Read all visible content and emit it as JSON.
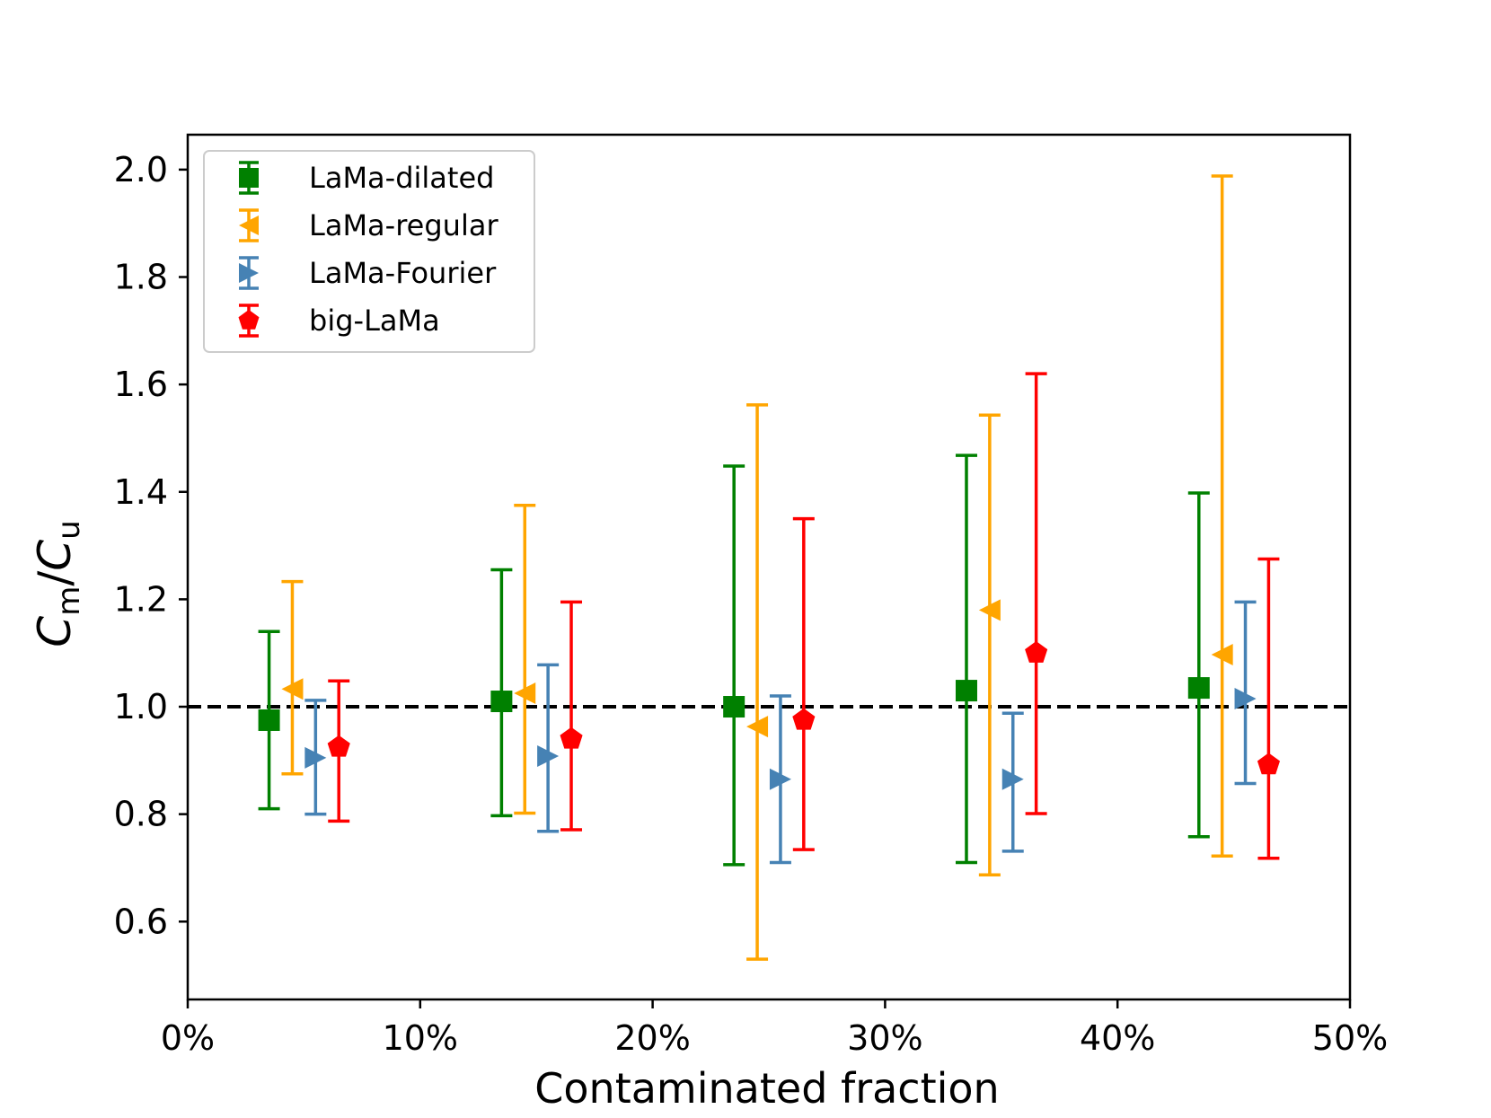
{
  "chart_data": {
    "type": "errorbar",
    "xlabel": "Contaminated fraction",
    "ylabel": {
      "c1": "C",
      "sub1": "m",
      "slash": "/",
      "c2": "C",
      "sub2": "u"
    },
    "xlim": [
      0,
      50
    ],
    "ylim": [
      0.455,
      2.065
    ],
    "x_ticks": [
      0,
      10,
      20,
      30,
      40,
      50
    ],
    "x_tick_labels": [
      "0%",
      "10%",
      "20%",
      "30%",
      "40%",
      "50%"
    ],
    "y_ticks": [
      0.6,
      0.8,
      1.0,
      1.2,
      1.4,
      1.6,
      1.8,
      2.0
    ],
    "y_tick_labels": [
      "0.6",
      "0.8",
      "1.0",
      "1.2",
      "1.4",
      "1.6",
      "1.8",
      "2.0"
    ],
    "reference_line": {
      "y": 1.0,
      "style": "dashed",
      "color": "#000000"
    },
    "legend_position": "upper left",
    "series": [
      {
        "name": "LaMa-dilated",
        "marker": "square",
        "color": "#008000",
        "x": [
          3.5,
          13.5,
          23.5,
          33.5,
          43.5
        ],
        "y": [
          0.975,
          1.01,
          1.0,
          1.03,
          1.035
        ],
        "y_low": [
          0.81,
          0.797,
          0.706,
          0.71,
          0.758
        ],
        "y_high": [
          1.14,
          1.255,
          1.448,
          1.468,
          1.398
        ]
      },
      {
        "name": "LaMa-regular",
        "marker": "triangle-left",
        "color": "#FFA500",
        "x": [
          4.5,
          14.5,
          24.5,
          34.5,
          44.5
        ],
        "y": [
          1.033,
          1.025,
          0.963,
          1.18,
          1.097
        ],
        "y_low": [
          0.875,
          0.802,
          0.53,
          0.687,
          0.722
        ],
        "y_high": [
          1.233,
          1.375,
          1.562,
          1.543,
          1.988
        ]
      },
      {
        "name": "LaMa-Fourier",
        "marker": "triangle-right",
        "color": "#4682B4",
        "x": [
          5.5,
          15.5,
          25.5,
          35.5,
          45.5
        ],
        "y": [
          0.905,
          0.908,
          0.865,
          0.865,
          1.015
        ],
        "y_low": [
          0.8,
          0.768,
          0.71,
          0.731,
          0.857
        ],
        "y_high": [
          1.012,
          1.078,
          1.02,
          0.988,
          1.195
        ]
      },
      {
        "name": "big-LaMa",
        "marker": "pentagon",
        "color": "#FF0000",
        "x": [
          6.5,
          16.5,
          26.5,
          36.5,
          46.5
        ],
        "y": [
          0.925,
          0.94,
          0.975,
          1.1,
          0.892
        ],
        "y_low": [
          0.787,
          0.771,
          0.734,
          0.801,
          0.718
        ],
        "y_high": [
          1.048,
          1.195,
          1.35,
          1.62,
          1.275
        ]
      }
    ]
  }
}
